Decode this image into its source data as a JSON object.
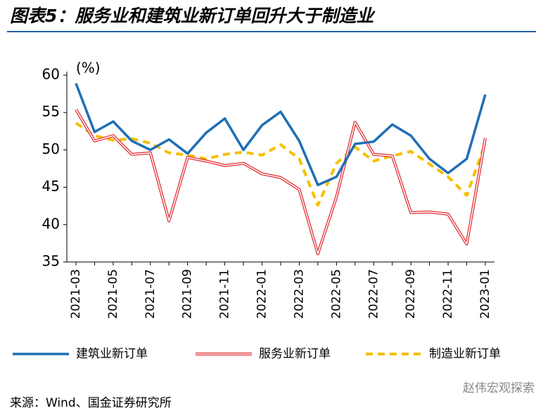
{
  "chart_data": {
    "type": "line",
    "title": "图表5：服务业和建筑业新订单回升大于制造业",
    "y_label": "(%)",
    "source": "来源：Wind、国金证券研究所",
    "watermark": "赵伟宏观探索",
    "categories": [
      "2021-03",
      null,
      "2021-05",
      null,
      "2021-07",
      null,
      "2021-09",
      null,
      "2021-11",
      null,
      "2022-01",
      null,
      "2022-03",
      null,
      "2022-05",
      null,
      "2022-07",
      null,
      "2022-09",
      null,
      "2022-11",
      null,
      "2023-01"
    ],
    "series": [
      {
        "name": "建筑业新订单",
        "color": "#1f6fb5",
        "style": "solid",
        "values": [
          58.9,
          52.4,
          53.8,
          51.2,
          50.0,
          51.4,
          49.5,
          52.3,
          54.2,
          50.0,
          53.3,
          55.1,
          51.2,
          45.3,
          46.4,
          50.8,
          51.1,
          53.4,
          51.9,
          48.8,
          46.9,
          48.8,
          57.4
        ]
      },
      {
        "name": "服务业新订单",
        "color": "#e0242b",
        "style": "double",
        "values": [
          55.4,
          51.2,
          51.9,
          49.4,
          49.6,
          40.5,
          49.0,
          48.5,
          47.9,
          48.2,
          46.8,
          46.3,
          44.7,
          36.1,
          43.7,
          53.7,
          49.4,
          49.2,
          41.6,
          41.7,
          41.4,
          37.4,
          51.6
        ]
      },
      {
        "name": "制造业新订单",
        "color": "#f5c000",
        "style": "dashed",
        "values": [
          53.6,
          51.9,
          51.3,
          51.5,
          50.9,
          49.6,
          49.3,
          48.8,
          49.4,
          49.7,
          49.3,
          50.7,
          48.8,
          42.6,
          48.2,
          50.4,
          48.5,
          49.2,
          49.8,
          48.1,
          46.4,
          43.9,
          50.9
        ]
      }
    ],
    "ylim": [
      35,
      60
    ],
    "yticks": [
      35,
      40,
      45,
      50,
      55,
      60
    ],
    "grid": false
  }
}
